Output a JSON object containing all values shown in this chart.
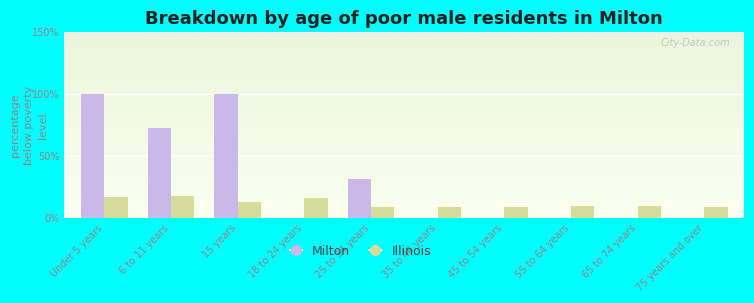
{
  "title": "Breakdown by age of poor male residents in Milton",
  "ylabel": "percentage\nbelow poverty\nlevel",
  "categories": [
    "Under 5 years",
    "6 to 11 years",
    "15 years",
    "18 to 24 years",
    "25 to 34 years",
    "35 to 44 years",
    "45 to 54 years",
    "55 to 64 years",
    "65 to 74 years",
    "75 years and over"
  ],
  "milton_values": [
    100,
    73,
    100,
    0,
    32,
    0,
    0,
    0,
    0,
    0
  ],
  "illinois_values": [
    17,
    18,
    13,
    16,
    9,
    9,
    9,
    10,
    10,
    9
  ],
  "milton_color": "#c9b8e8",
  "illinois_color": "#d4dd99",
  "background_color": "#00ffff",
  "ylim": [
    0,
    150
  ],
  "yticks": [
    0,
    50,
    100,
    150
  ],
  "ytick_labels": [
    "0%",
    "50%",
    "100%",
    "150%"
  ],
  "bar_width": 0.35,
  "title_fontsize": 13,
  "axis_label_fontsize": 8,
  "tick_fontsize": 7,
  "legend_labels": [
    "Milton",
    "Illinois"
  ],
  "watermark": "City-Data.com",
  "tick_color": "#888888",
  "ylabel_color": "#888888"
}
